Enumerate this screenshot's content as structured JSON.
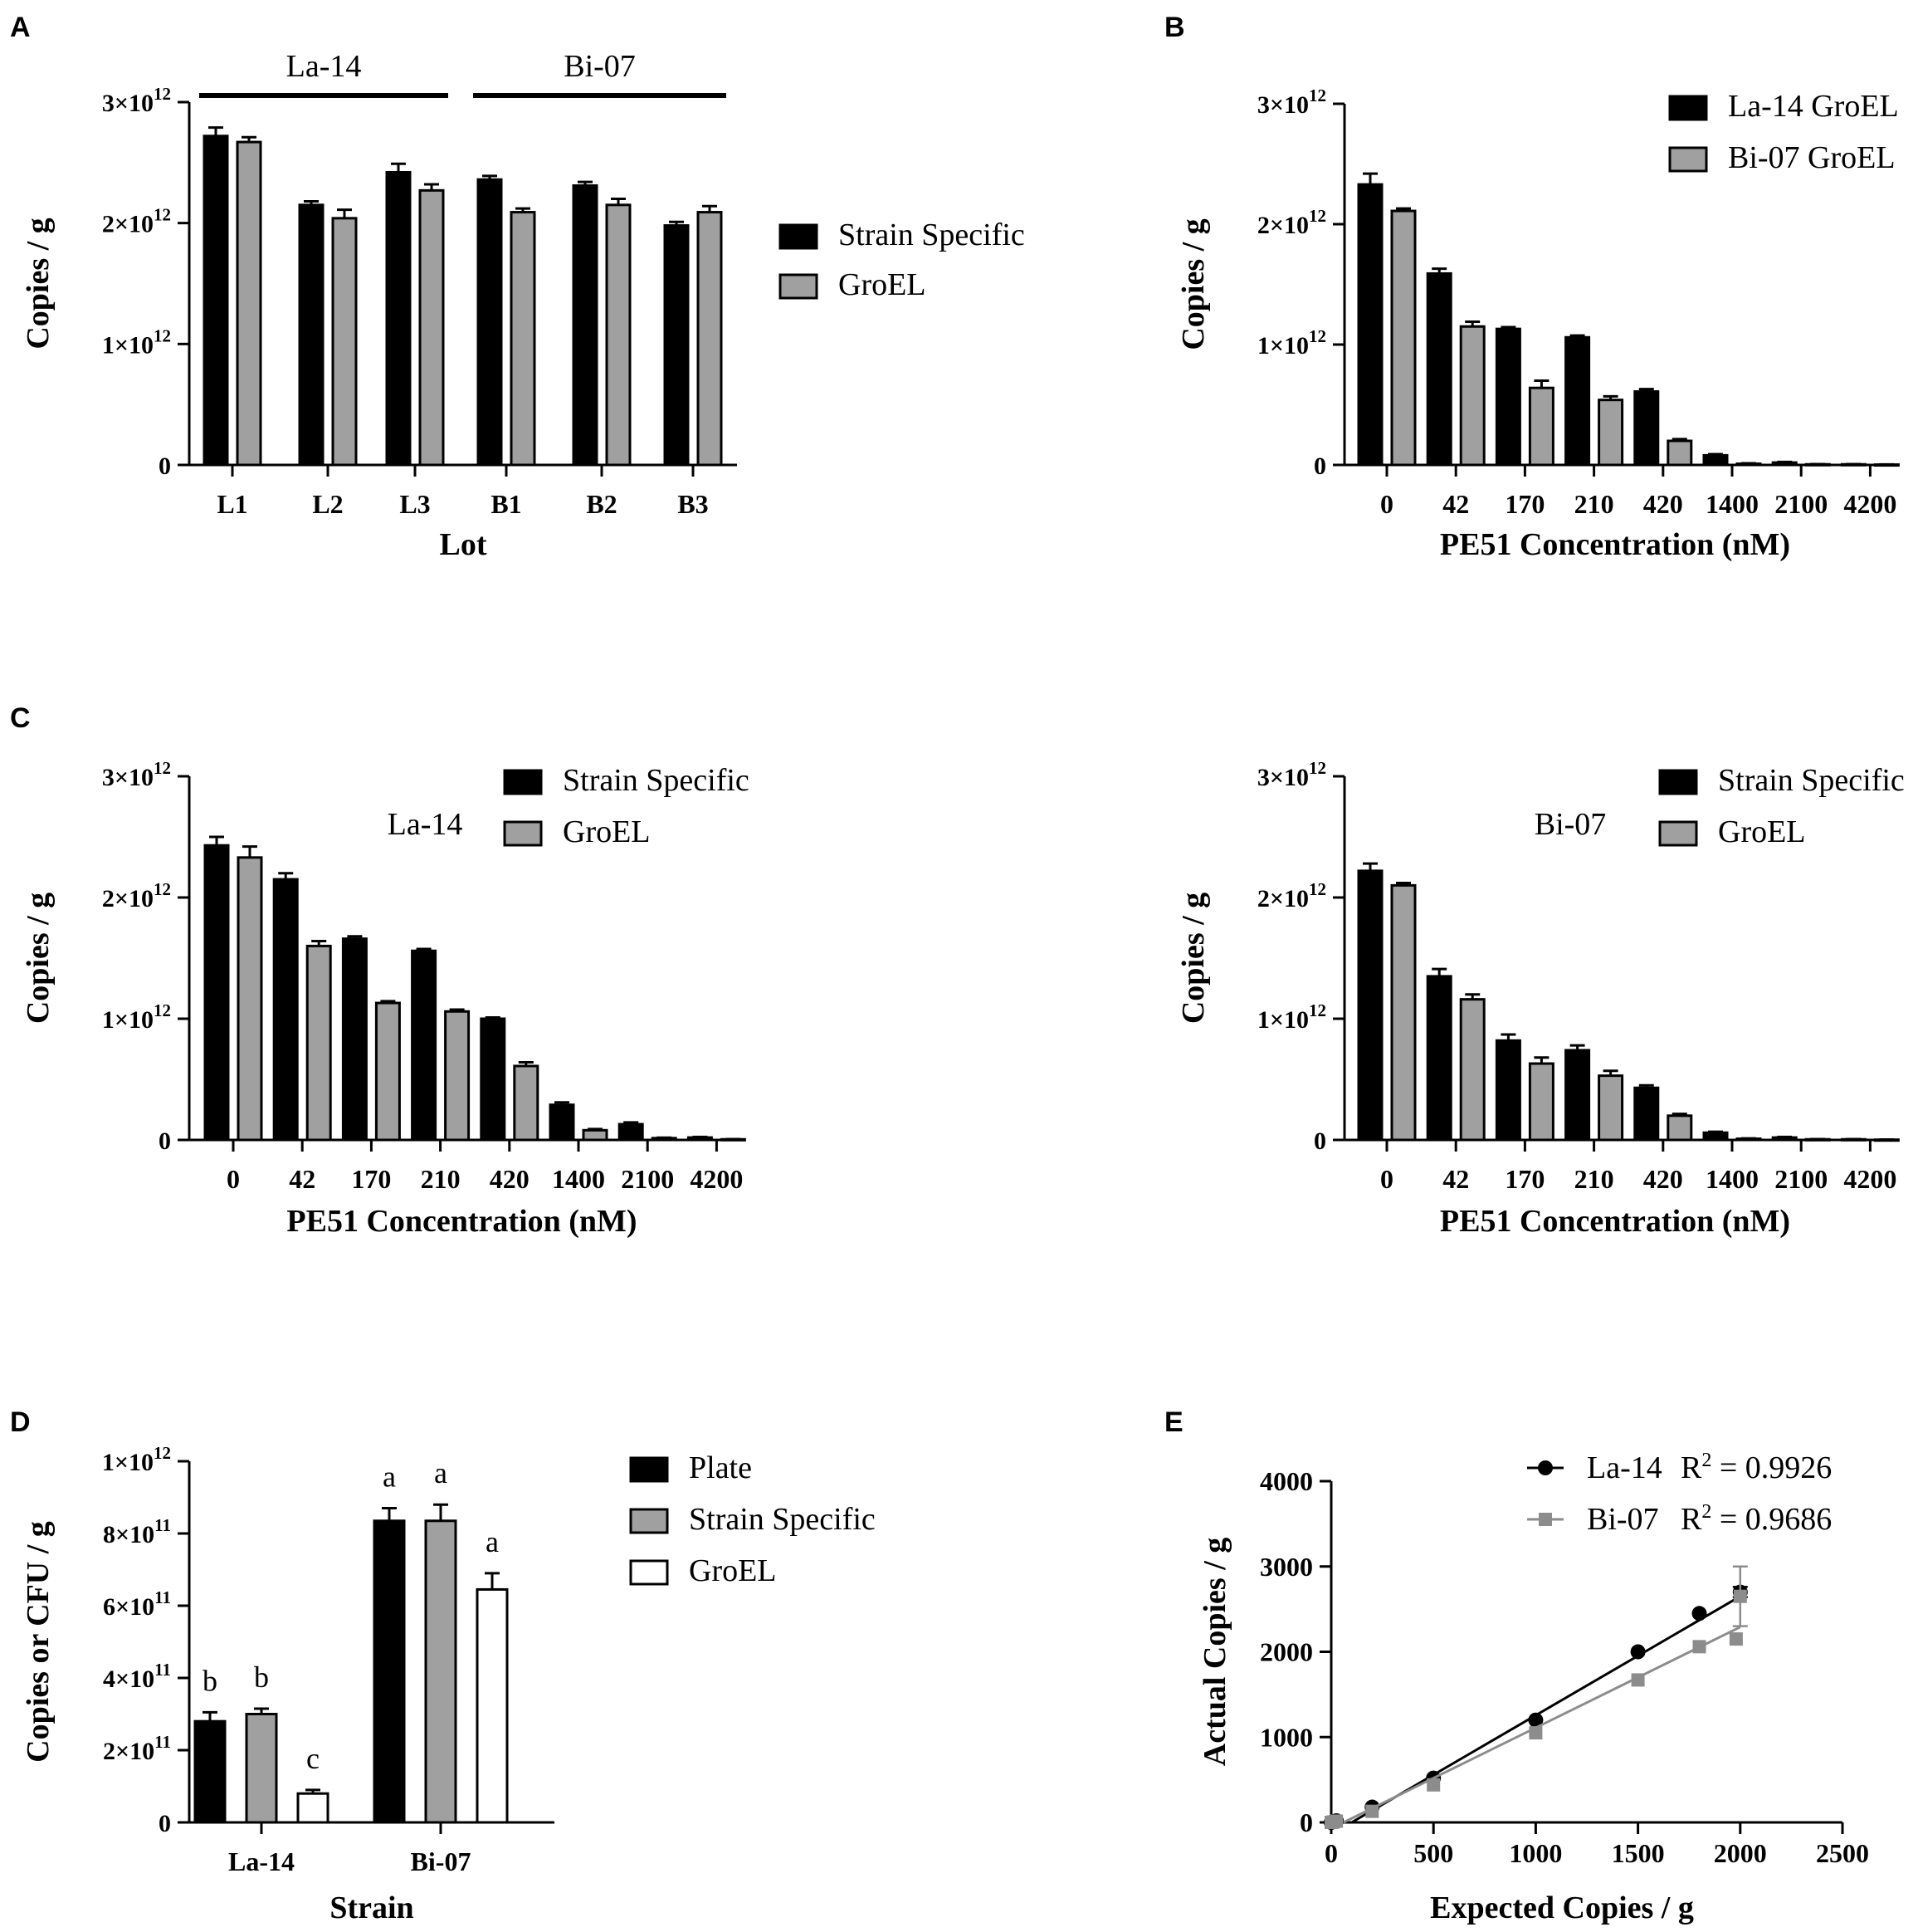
{
  "colors": {
    "black": "#000000",
    "gray": "#a0a0a0",
    "white": "#ffffff",
    "scatter_gray": "#8c8c8c"
  },
  "chart_data": [
    {
      "id": "A",
      "panel_label": "A",
      "type": "bar",
      "categories": [
        "L1",
        "L2",
        "L3",
        "B1",
        "B2",
        "B3"
      ],
      "series": [
        {
          "name": "Strain Specific",
          "color": "black",
          "values": [
            2720000000000.0,
            2150000000000.0,
            2420000000000.0,
            2360000000000.0,
            2310000000000.0,
            1980000000000.0
          ],
          "errors": [
            70000000000.0,
            30000000000.0,
            70000000000.0,
            30000000000.0,
            30000000000.0,
            30000000000.0
          ]
        },
        {
          "name": "GroEL",
          "color": "gray",
          "values": [
            2670000000000.0,
            2040000000000.0,
            2270000000000.0,
            2090000000000.0,
            2150000000000.0,
            2090000000000.0
          ],
          "errors": [
            40000000000.0,
            70000000000.0,
            50000000000.0,
            30000000000.0,
            50000000000.0,
            50000000000.0
          ]
        }
      ],
      "ylim": [
        0,
        3000000000000.0
      ],
      "yticks": [
        {
          "value": 3000000000000.0,
          "mant": "3×10",
          "exp": "12"
        },
        {
          "value": 2000000000000.0,
          "mant": "2×10",
          "exp": "12"
        },
        {
          "value": 1000000000000.0,
          "mant": "1×10",
          "exp": "12"
        },
        {
          "value": 0,
          "mant": "0",
          "exp": ""
        }
      ],
      "xlabel": "Lot",
      "ylabel": "Copies / g",
      "group_brackets": [
        {
          "label": "La-14",
          "from": 0,
          "to": 2
        },
        {
          "label": "Bi-07",
          "from": 3,
          "to": 5
        }
      ],
      "legend_placement": "right"
    },
    {
      "id": "B",
      "panel_label": "B",
      "type": "bar",
      "categories": [
        "0",
        "42",
        "170",
        "210",
        "420",
        "1400",
        "2100",
        "4200"
      ],
      "series": [
        {
          "name": "La-14 GroEL",
          "color": "black",
          "values": [
            2330000000000.0,
            1590000000000.0,
            1130000000000.0,
            1060000000000.0,
            610000000000.0,
            80000000000.0,
            20000000000.0,
            5000000000.0
          ],
          "errors": [
            90000000000.0,
            40000000000.0,
            15000000000.0,
            15000000000.0,
            20000000000.0,
            10000000000.0,
            5000000000.0,
            2000000000.0
          ]
        },
        {
          "name": "Bi-07 GroEL",
          "color": "gray",
          "values": [
            2110000000000.0,
            1150000000000.0,
            640000000000.0,
            540000000000.0,
            200000000000.0,
            10000000000.0,
            5000000000.0,
            3000000000.0
          ],
          "errors": [
            20000000000.0,
            40000000000.0,
            60000000000.0,
            30000000000.0,
            15000000000.0,
            4000000000.0,
            2000000000.0,
            1000000000.0
          ]
        }
      ],
      "ylim": [
        0,
        3000000000000.0
      ],
      "yticks": [
        {
          "value": 3000000000000.0,
          "mant": "3×10",
          "exp": "12"
        },
        {
          "value": 2000000000000.0,
          "mant": "2×10",
          "exp": "12"
        },
        {
          "value": 1000000000000.0,
          "mant": "1×10",
          "exp": "12"
        },
        {
          "value": 0,
          "mant": "0",
          "exp": ""
        }
      ],
      "xlabel": "PE51 Concentration (nM)",
      "ylabel": "Copies / g",
      "legend_placement": "top-right"
    },
    {
      "id": "C1",
      "panel_label": "C",
      "type": "bar",
      "annotation": "La-14",
      "categories": [
        "0",
        "42",
        "170",
        "210",
        "420",
        "1400",
        "2100",
        "4200"
      ],
      "series": [
        {
          "name": "Strain Specific",
          "color": "black",
          "values": [
            2430000000000.0,
            2150000000000.0,
            1660000000000.0,
            1560000000000.0,
            1000000000000.0,
            290000000000.0,
            130000000000.0,
            20000000000.0
          ],
          "errors": [
            70000000000.0,
            50000000000.0,
            20000000000.0,
            15000000000.0,
            10000000000.0,
            20000000000.0,
            15000000000.0,
            5000000000.0
          ]
        },
        {
          "name": "GroEL",
          "color": "gray",
          "values": [
            2330000000000.0,
            1600000000000.0,
            1130000000000.0,
            1060000000000.0,
            610000000000.0,
            80000000000.0,
            15000000000.0,
            5000000000.0
          ],
          "errors": [
            90000000000.0,
            40000000000.0,
            15000000000.0,
            15000000000.0,
            30000000000.0,
            10000000000.0,
            4000000000.0,
            2000000000.0
          ]
        }
      ],
      "ylim": [
        0,
        3000000000000.0
      ],
      "yticks": [
        {
          "value": 3000000000000.0,
          "mant": "3×10",
          "exp": "12"
        },
        {
          "value": 2000000000000.0,
          "mant": "2×10",
          "exp": "12"
        },
        {
          "value": 1000000000000.0,
          "mant": "1×10",
          "exp": "12"
        },
        {
          "value": 0,
          "mant": "0",
          "exp": ""
        }
      ],
      "xlabel": "PE51 Concentration (nM)",
      "ylabel": "Copies / g",
      "legend_placement": "top-right"
    },
    {
      "id": "C2",
      "panel_label": "",
      "type": "bar",
      "annotation": "Bi-07",
      "categories": [
        "0",
        "42",
        "170",
        "210",
        "420",
        "1400",
        "2100",
        "4200"
      ],
      "series": [
        {
          "name": "Strain Specific",
          "color": "black",
          "values": [
            2220000000000.0,
            1350000000000.0,
            820000000000.0,
            740000000000.0,
            430000000000.0,
            60000000000.0,
            20000000000.0,
            5000000000.0
          ],
          "errors": [
            60000000000.0,
            60000000000.0,
            50000000000.0,
            40000000000.0,
            20000000000.0,
            8000000000.0,
            5000000000.0,
            2000000000.0
          ]
        },
        {
          "name": "GroEL",
          "color": "gray",
          "values": [
            2100000000000.0,
            1160000000000.0,
            630000000000.0,
            530000000000.0,
            200000000000.0,
            10000000000.0,
            5000000000.0,
            2000000000.0
          ],
          "errors": [
            20000000000.0,
            40000000000.0,
            50000000000.0,
            40000000000.0,
            15000000000.0,
            3000000000.0,
            2000000000.0,
            1000000000.0
          ]
        }
      ],
      "ylim": [
        0,
        3000000000000.0
      ],
      "yticks": [
        {
          "value": 3000000000000.0,
          "mant": "3×10",
          "exp": "12"
        },
        {
          "value": 2000000000000.0,
          "mant": "2×10",
          "exp": "12"
        },
        {
          "value": 1000000000000.0,
          "mant": "1×10",
          "exp": "12"
        },
        {
          "value": 0,
          "mant": "0",
          "exp": ""
        }
      ],
      "xlabel": "PE51 Concentration (nM)",
      "ylabel": "Copies / g",
      "legend_placement": "top-right"
    },
    {
      "id": "D",
      "panel_label": "D",
      "type": "bar",
      "categories": [
        "La-14",
        "Bi-07"
      ],
      "series": [
        {
          "name": "Plate",
          "color": "black",
          "values": [
            280000000000.0,
            835000000000.0
          ],
          "errors": [
            25000000000.0,
            35000000000.0
          ],
          "letters": [
            "b",
            "a"
          ]
        },
        {
          "name": "Strain Specific",
          "color": "gray",
          "values": [
            300000000000.0,
            835000000000.0
          ],
          "errors": [
            15000000000.0,
            45000000000.0
          ],
          "letters": [
            "b",
            "a"
          ]
        },
        {
          "name": "GroEL",
          "color": "white",
          "values": [
            80000000000.0,
            645000000000.0
          ],
          "errors": [
            10000000000.0,
            45000000000.0
          ],
          "letters": [
            "c",
            "a"
          ]
        }
      ],
      "ylim": [
        0,
        1000000000000.0
      ],
      "yticks": [
        {
          "value": 1000000000000.0,
          "mant": "1×10",
          "exp": "12"
        },
        {
          "value": 800000000000.0,
          "mant": "8×10",
          "exp": "11"
        },
        {
          "value": 600000000000.0,
          "mant": "6×10",
          "exp": "11"
        },
        {
          "value": 400000000000.0,
          "mant": "4×10",
          "exp": "11"
        },
        {
          "value": 200000000000.0,
          "mant": "2×10",
          "exp": "11"
        },
        {
          "value": 0,
          "mant": "0",
          "exp": ""
        }
      ],
      "xlabel": "Strain",
      "ylabel": "Copies or CFU / g",
      "legend_placement": "right"
    },
    {
      "id": "E",
      "panel_label": "E",
      "type": "scatter",
      "xlim": [
        0,
        2500
      ],
      "ylim": [
        0,
        4000
      ],
      "xticks": [
        0,
        500,
        1000,
        1500,
        2000,
        2500
      ],
      "yticks": [
        0,
        1000,
        2000,
        3000,
        4000
      ],
      "xlabel": "Expected Copies / g",
      "ylabel": "Actual Copies / g",
      "series": [
        {
          "name": "La-14",
          "marker": "circle",
          "color": "black",
          "r2_label": "R",
          "r2_value": " = 0.9926",
          "x": [
            0,
            10,
            25,
            200,
            500,
            1000,
            1500,
            1800,
            2000
          ],
          "y": [
            0,
            10,
            20,
            180,
            520,
            1200,
            2000,
            2450,
            2700
          ],
          "errors": [
            0,
            0,
            0,
            0,
            0,
            0,
            0,
            0,
            60
          ],
          "fit": [
            [
              100,
              0
            ],
            [
              2000,
              2650
            ]
          ]
        },
        {
          "name": "Bi-07",
          "marker": "square",
          "color": "scatter_gray",
          "r2_label": "R",
          "r2_value": " = 0.9686",
          "x": [
            0,
            10,
            25,
            200,
            500,
            1000,
            1500,
            1800,
            2000,
            1980
          ],
          "y": [
            0,
            5,
            15,
            130,
            440,
            1050,
            1670,
            2060,
            2650,
            2150
          ],
          "errors": [
            0,
            0,
            0,
            0,
            0,
            0,
            0,
            0,
            350,
            0
          ],
          "fit": [
            [
              60,
              0
            ],
            [
              2000,
              2290
            ]
          ]
        }
      ],
      "legend_placement": "top-right"
    }
  ]
}
